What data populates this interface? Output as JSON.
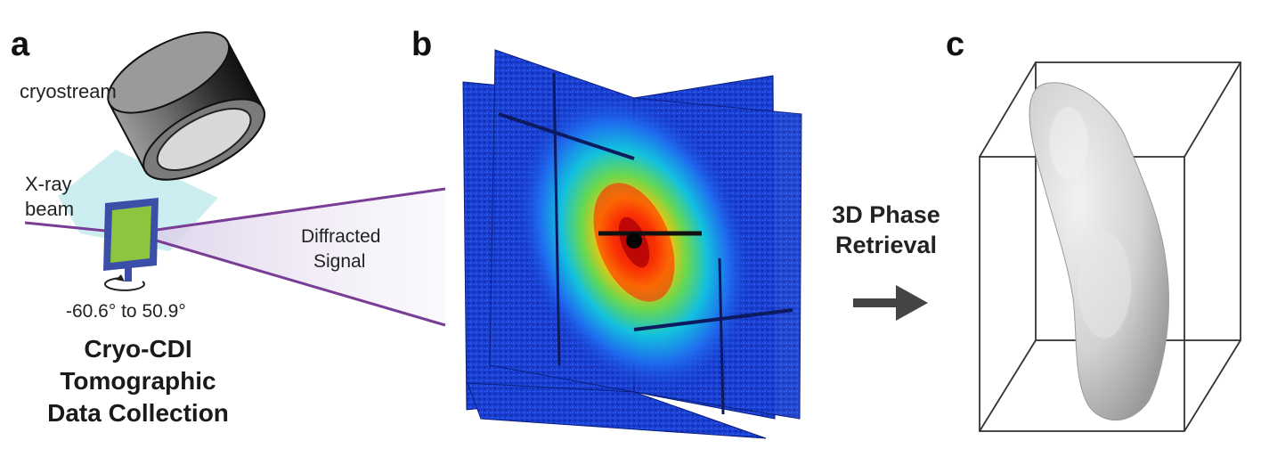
{
  "panels": {
    "a": {
      "letter": "a",
      "cryostream_label": "cryostream",
      "beam_label_line1": "X-ray",
      "beam_label_line2": "beam",
      "signal_label_line1": "Diffracted",
      "signal_label_line2": "Signal",
      "angle_range": "-60.6° to 50.9°",
      "title_line1": "Cryo-CDI",
      "title_line2": "Tomographic",
      "title_line3": "Data Collection"
    },
    "b": {
      "letter": "b"
    },
    "c": {
      "letter": "c"
    },
    "step": {
      "line1": "3D Phase",
      "line2": "Retrieval"
    }
  },
  "colors": {
    "beam_line": "#7a3d96",
    "sample": "#8cc63f",
    "sample_frame": "#3c4fa8",
    "cryo_cone": "#c8ecee",
    "signal_cone": "#e7def0",
    "pattern_background": "#1a3fd0",
    "arrow": "#444444",
    "reconstruction": "#d6d6d6"
  },
  "icons": {
    "rotation": "rotation-arrow-icon",
    "step_arrow": "right-arrow-icon"
  }
}
